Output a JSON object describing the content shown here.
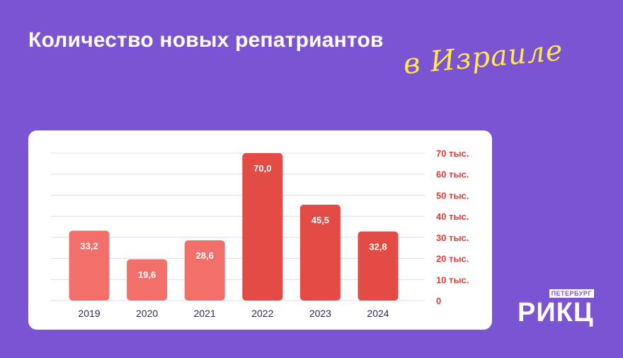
{
  "header": {
    "title": "Количество новых репатриантов",
    "subtitle": "в Израиле"
  },
  "logo": {
    "small": "ПЕТЕРБУРГ",
    "big": "РИКЦ"
  },
  "colors": {
    "background": "#7b54d3",
    "card": "#ffffff",
    "bar_light": "#f3706a",
    "bar_dark": "#e34b45",
    "axis_label": "#e03b35",
    "category_label": "#2b2b55",
    "gridline": "#dcdff0",
    "subtitle": "#ffe94a"
  },
  "chart_data": {
    "type": "bar",
    "categories": [
      "2019",
      "2020",
      "2021",
      "2022",
      "2023",
      "2024"
    ],
    "values": [
      33.2,
      19.6,
      28.6,
      70.0,
      45.5,
      32.8
    ],
    "value_labels": [
      "33,2",
      "19,6",
      "28,6",
      "70,0",
      "45,5",
      "32,8"
    ],
    "unit": "тыс.",
    "yticks": [
      0,
      10,
      20,
      30,
      40,
      50,
      60,
      70
    ],
    "ytick_labels": [
      "0",
      "10 тыс.",
      "20 тыс.",
      "30 тыс.",
      "40 тыс.",
      "50 тыс.",
      "60 тыс.",
      "70 тыс."
    ],
    "ylim": [
      0,
      70
    ],
    "yaxis_position": "right",
    "grid": true,
    "title": "Количество новых репатриантов",
    "subtitle": "в Израиле",
    "bar_shading": [
      "light",
      "light",
      "light",
      "dark",
      "dark",
      "dark"
    ]
  }
}
